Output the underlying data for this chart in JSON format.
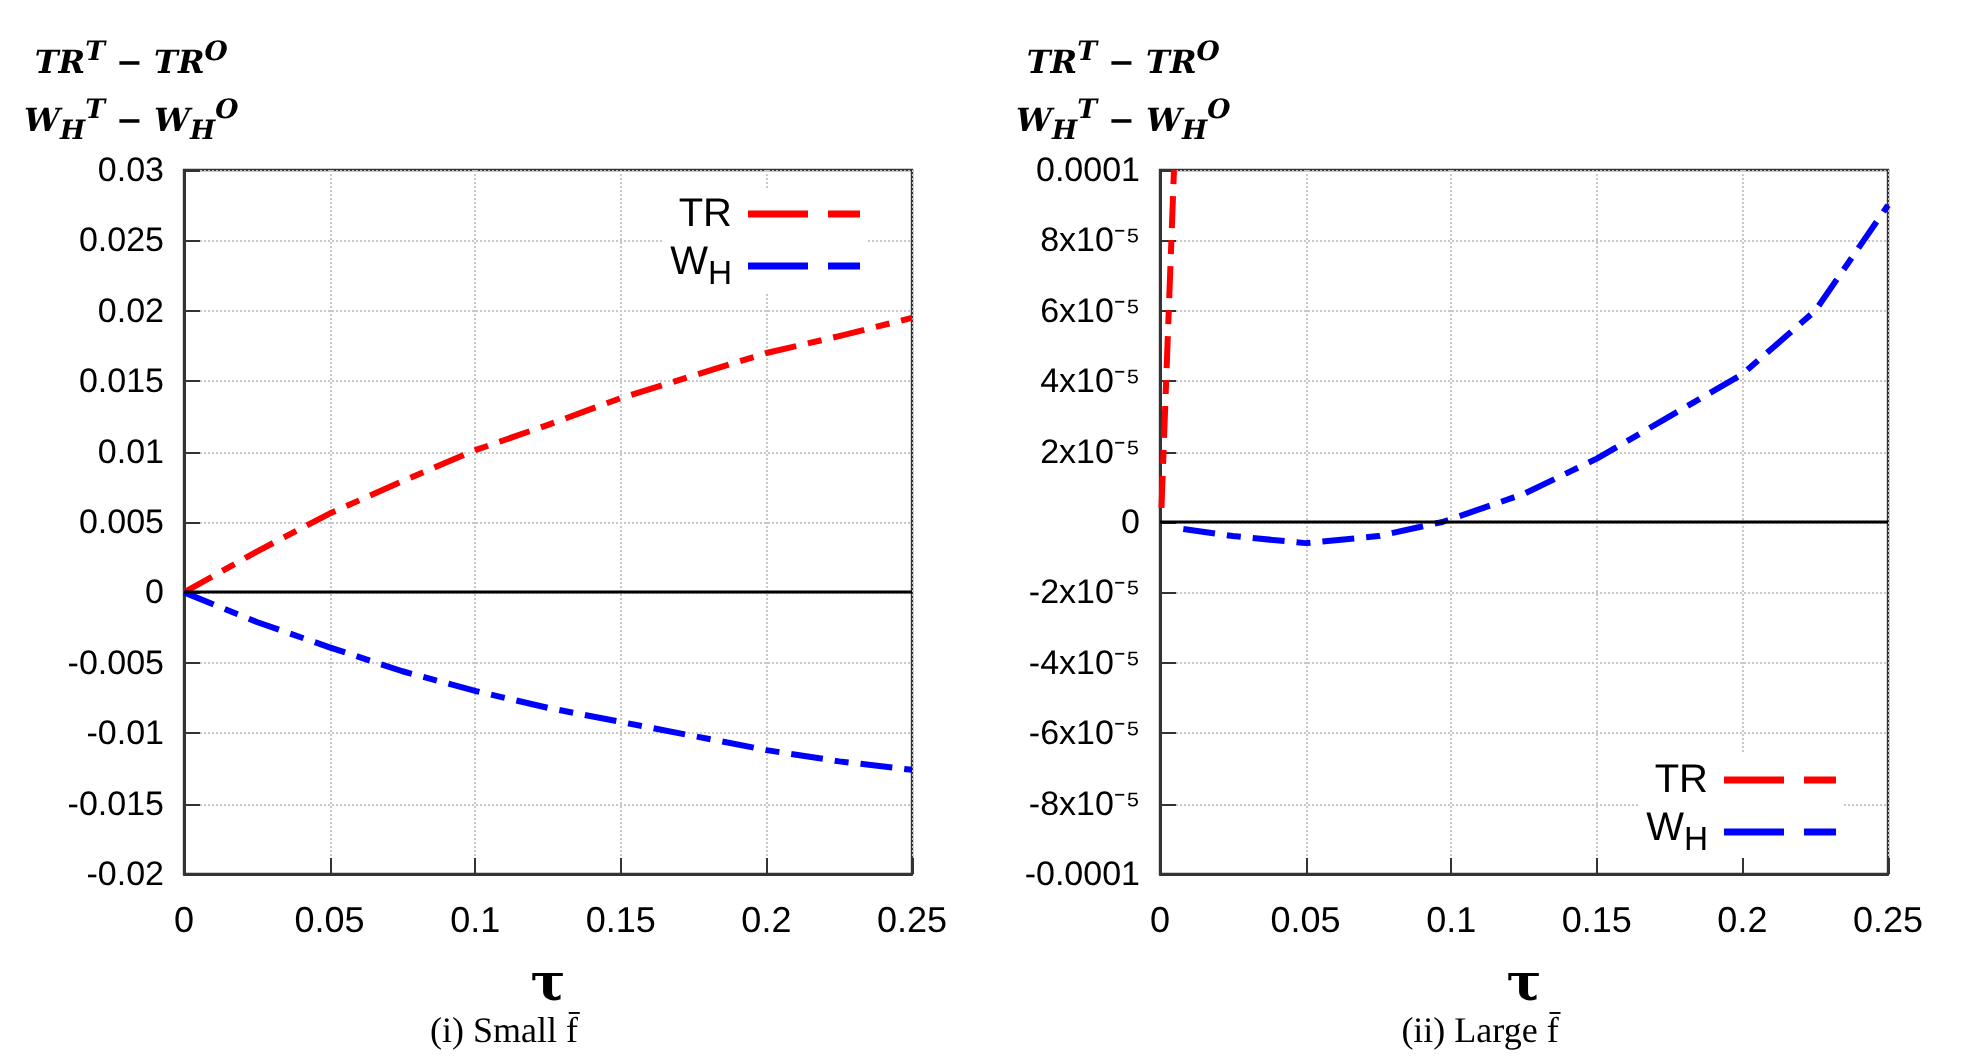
{
  "chart_data": [
    {
      "type": "line",
      "title": "(i) Small f̄",
      "xlabel": "τ",
      "ylabel": "TR$^{T}$ − TR$^{O}$\nW$_{H}$$^{T}$ − W$_{H}$$^{O}$",
      "legend": "top right",
      "grid": true,
      "line_style": "dashed",
      "xlim": [
        0,
        0.25
      ],
      "xticks": [
        0,
        0.05,
        0.1,
        0.15,
        0.2,
        0.25
      ],
      "ylim": [
        -0.02,
        0.03
      ],
      "yticks": [
        -0.02,
        -0.015,
        -0.01,
        -0.005,
        0,
        0.005,
        0.01,
        0.015,
        0.02,
        0.025,
        0.03
      ],
      "ref_lines": [
        {
          "axis": "y",
          "value": 0,
          "color": "#000000",
          "line_style": "solid"
        }
      ],
      "series": [
        {
          "name": "TR",
          "color": "#ff0000",
          "x": [
            0,
            0.025,
            0.05,
            0.075,
            0.1,
            0.125,
            0.15,
            0.175,
            0.2,
            0.225,
            0.25
          ],
          "values": [
            0,
            0.0029,
            0.0056,
            0.0079,
            0.0101,
            0.0119,
            0.0138,
            0.0154,
            0.017,
            0.0182,
            0.0195
          ]
        },
        {
          "name": "W$_{H}$",
          "color": "#0000ff",
          "x": [
            0,
            0.025,
            0.05,
            0.075,
            0.1,
            0.125,
            0.15,
            0.175,
            0.2,
            0.225,
            0.25
          ],
          "values": [
            0,
            -0.0021,
            -0.0039,
            -0.0056,
            -0.007,
            -0.0082,
            -0.0092,
            -0.0102,
            -0.0112,
            -0.012,
            -0.0126
          ]
        }
      ]
    },
    {
      "type": "line",
      "title": "(ii) Large f̄",
      "xlabel": "τ",
      "ylabel": "TR$^{T}$ − TR$^{O}$\nW$_{H}$$^{T}$ − W$_{H}$$^{O}$",
      "legend": "bottom right",
      "grid": true,
      "line_style": "dashed",
      "xlim": [
        0,
        0.25
      ],
      "xticks": [
        0,
        0.05,
        0.1,
        0.15,
        0.2,
        0.25
      ],
      "ylim": [
        -0.0001,
        0.0001
      ],
      "yticks": [
        -0.0001,
        {
          "value": -8e-05,
          "label": "-8x10⁻⁵"
        },
        {
          "value": -6e-05,
          "label": "-6x10⁻⁵"
        },
        {
          "value": -4e-05,
          "label": "-4x10⁻⁵"
        },
        {
          "value": -2e-05,
          "label": "-2x10⁻⁵"
        },
        0,
        {
          "value": 2e-05,
          "label": "2x10⁻⁵"
        },
        {
          "value": 4e-05,
          "label": "4x10⁻⁵"
        },
        {
          "value": 6e-05,
          "label": "6x10⁻⁵"
        },
        {
          "value": 8e-05,
          "label": "8x10⁻⁵"
        },
        0.0001
      ],
      "ref_lines": [
        {
          "axis": "y",
          "value": 0,
          "color": "#000000",
          "line_style": "solid"
        }
      ],
      "series": [
        {
          "name": "TR",
          "color": "#ff0000",
          "x": [
            0.0005,
            0.0048
          ],
          "values": [
            4e-06,
            0.0001
          ]
        },
        {
          "name": "W$_{H}$",
          "color": "#0000ff",
          "x": [
            0.008,
            0.025,
            0.05,
            0.075,
            0.097,
            0.125,
            0.15,
            0.175,
            0.2,
            0.225,
            0.25
          ],
          "values": [
            -2e-06,
            -4e-06,
            -6e-06,
            -4e-06,
            0,
            8e-06,
            1.8e-05,
            3e-05,
            4.2e-05,
            6e-05,
            9e-05
          ]
        }
      ]
    }
  ]
}
